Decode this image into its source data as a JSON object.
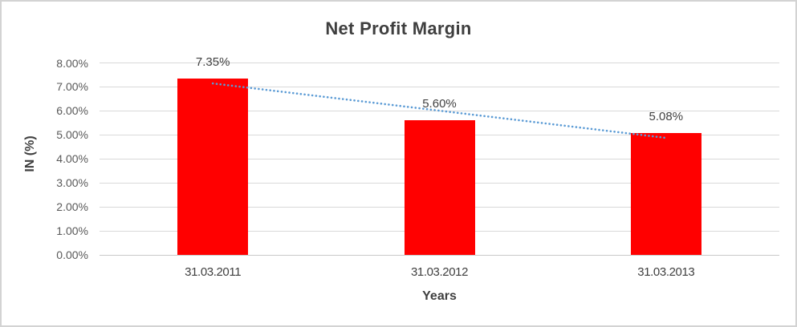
{
  "chart_data": {
    "type": "bar",
    "title": "Net Profit Margin",
    "xlabel": "Years",
    "ylabel": "IN (%)",
    "categories": [
      "31.03.2011",
      "31.03.2012",
      "31.03.2013"
    ],
    "values": [
      7.35,
      5.6,
      5.08
    ],
    "data_labels": [
      "7.35%",
      "5.60%",
      "5.08%"
    ],
    "ylim": [
      0,
      8
    ],
    "ytick_labels": [
      "0.00%",
      "1.00%",
      "2.00%",
      "3.00%",
      "4.00%",
      "5.00%",
      "6.00%",
      "7.00%",
      "8.00%"
    ],
    "grid": true,
    "legend": "none",
    "bar_color": "#FF0000",
    "gridline_color": "#D9D9D9",
    "axis_line_color": "#C9C9C9",
    "tick_text_color": "#595959",
    "label_text_color": "#404040",
    "title_color": "#3F3F3F",
    "trendline": {
      "type": "linear",
      "style": "dotted",
      "color": "#5B9BD5",
      "fitted_values": [
        7.145,
        6.01,
        4.875
      ]
    }
  }
}
